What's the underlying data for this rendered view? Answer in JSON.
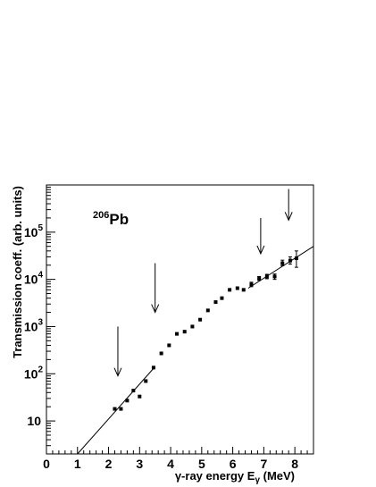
{
  "chart_data": {
    "type": "scatter",
    "title": "",
    "xlabel": "γ-ray energy Eγ (MeV)",
    "xlabel_parts": {
      "main": "γ-ray energy E",
      "sub": "γ",
      "unit": " (MeV)"
    },
    "ylabel": "Transmission coeff. (arb. units)",
    "xlim": [
      0,
      8.6
    ],
    "ylim": [
      2,
      1000000
    ],
    "yscale": "log",
    "grid": false,
    "legend": "none",
    "xticks": [
      "0",
      "1",
      "2",
      "3",
      "4",
      "5",
      "6",
      "7",
      "8"
    ],
    "yticks": [
      {
        "value": 10,
        "base": "10",
        "exp": ""
      },
      {
        "value": 100,
        "base": "10",
        "exp": "2"
      },
      {
        "value": 1000,
        "base": "10",
        "exp": "3"
      },
      {
        "value": 10000,
        "base": "10",
        "exp": "4"
      },
      {
        "value": 100000,
        "base": "10",
        "exp": "5"
      }
    ],
    "annotation": {
      "sup": "206",
      "text": "Pb"
    },
    "series": [
      {
        "points": [
          {
            "x": 2.2,
            "y": 18
          },
          {
            "x": 2.4,
            "y": 18
          },
          {
            "x": 2.6,
            "y": 27
          },
          {
            "x": 2.8,
            "y": 44
          },
          {
            "x": 3.0,
            "y": 33
          },
          {
            "x": 3.2,
            "y": 70
          },
          {
            "x": 3.45,
            "y": 135
          },
          {
            "x": 3.7,
            "y": 270
          },
          {
            "x": 3.95,
            "y": 400
          },
          {
            "x": 4.2,
            "y": 700
          },
          {
            "x": 4.45,
            "y": 780
          },
          {
            "x": 4.7,
            "y": 1000
          },
          {
            "x": 4.95,
            "y": 1400
          },
          {
            "x": 5.2,
            "y": 2200
          },
          {
            "x": 5.45,
            "y": 3300
          },
          {
            "x": 5.65,
            "y": 4000
          },
          {
            "x": 5.9,
            "y": 6000
          },
          {
            "x": 6.15,
            "y": 6500
          },
          {
            "x": 6.35,
            "y": 6000
          },
          {
            "x": 6.6,
            "y": 7800,
            "err": [
              7000,
              8700
            ]
          },
          {
            "x": 6.85,
            "y": 10500,
            "err": [
              9500,
              11500
            ]
          },
          {
            "x": 7.1,
            "y": 11500,
            "err": [
              10300,
              12800
            ]
          },
          {
            "x": 7.35,
            "y": 11500,
            "err": [
              10000,
              13000
            ]
          },
          {
            "x": 7.6,
            "y": 22000,
            "err": [
              19500,
              25500
            ]
          },
          {
            "x": 7.85,
            "y": 25000,
            "err": [
              21000,
              30000
            ]
          },
          {
            "x": 8.05,
            "y": 28000,
            "err": [
              18000,
              40000
            ]
          }
        ]
      }
    ],
    "fit_lines": [
      {
        "from": [
          1.0,
          2
        ],
        "to": [
          3.45,
          130
        ]
      },
      {
        "from": [
          6.5,
          6500
        ],
        "to": [
          8.6,
          50000
        ]
      }
    ],
    "arrows": [
      {
        "x": 2.3,
        "y_top": 1000,
        "y_tip": 90
      },
      {
        "x": 3.5,
        "y_top": 22000,
        "y_tip": 2000
      },
      {
        "x": 6.9,
        "y_top": 200000,
        "y_tip": 35000
      },
      {
        "x": 7.8,
        "y_top": 820000,
        "y_tip": 180000
      }
    ]
  }
}
